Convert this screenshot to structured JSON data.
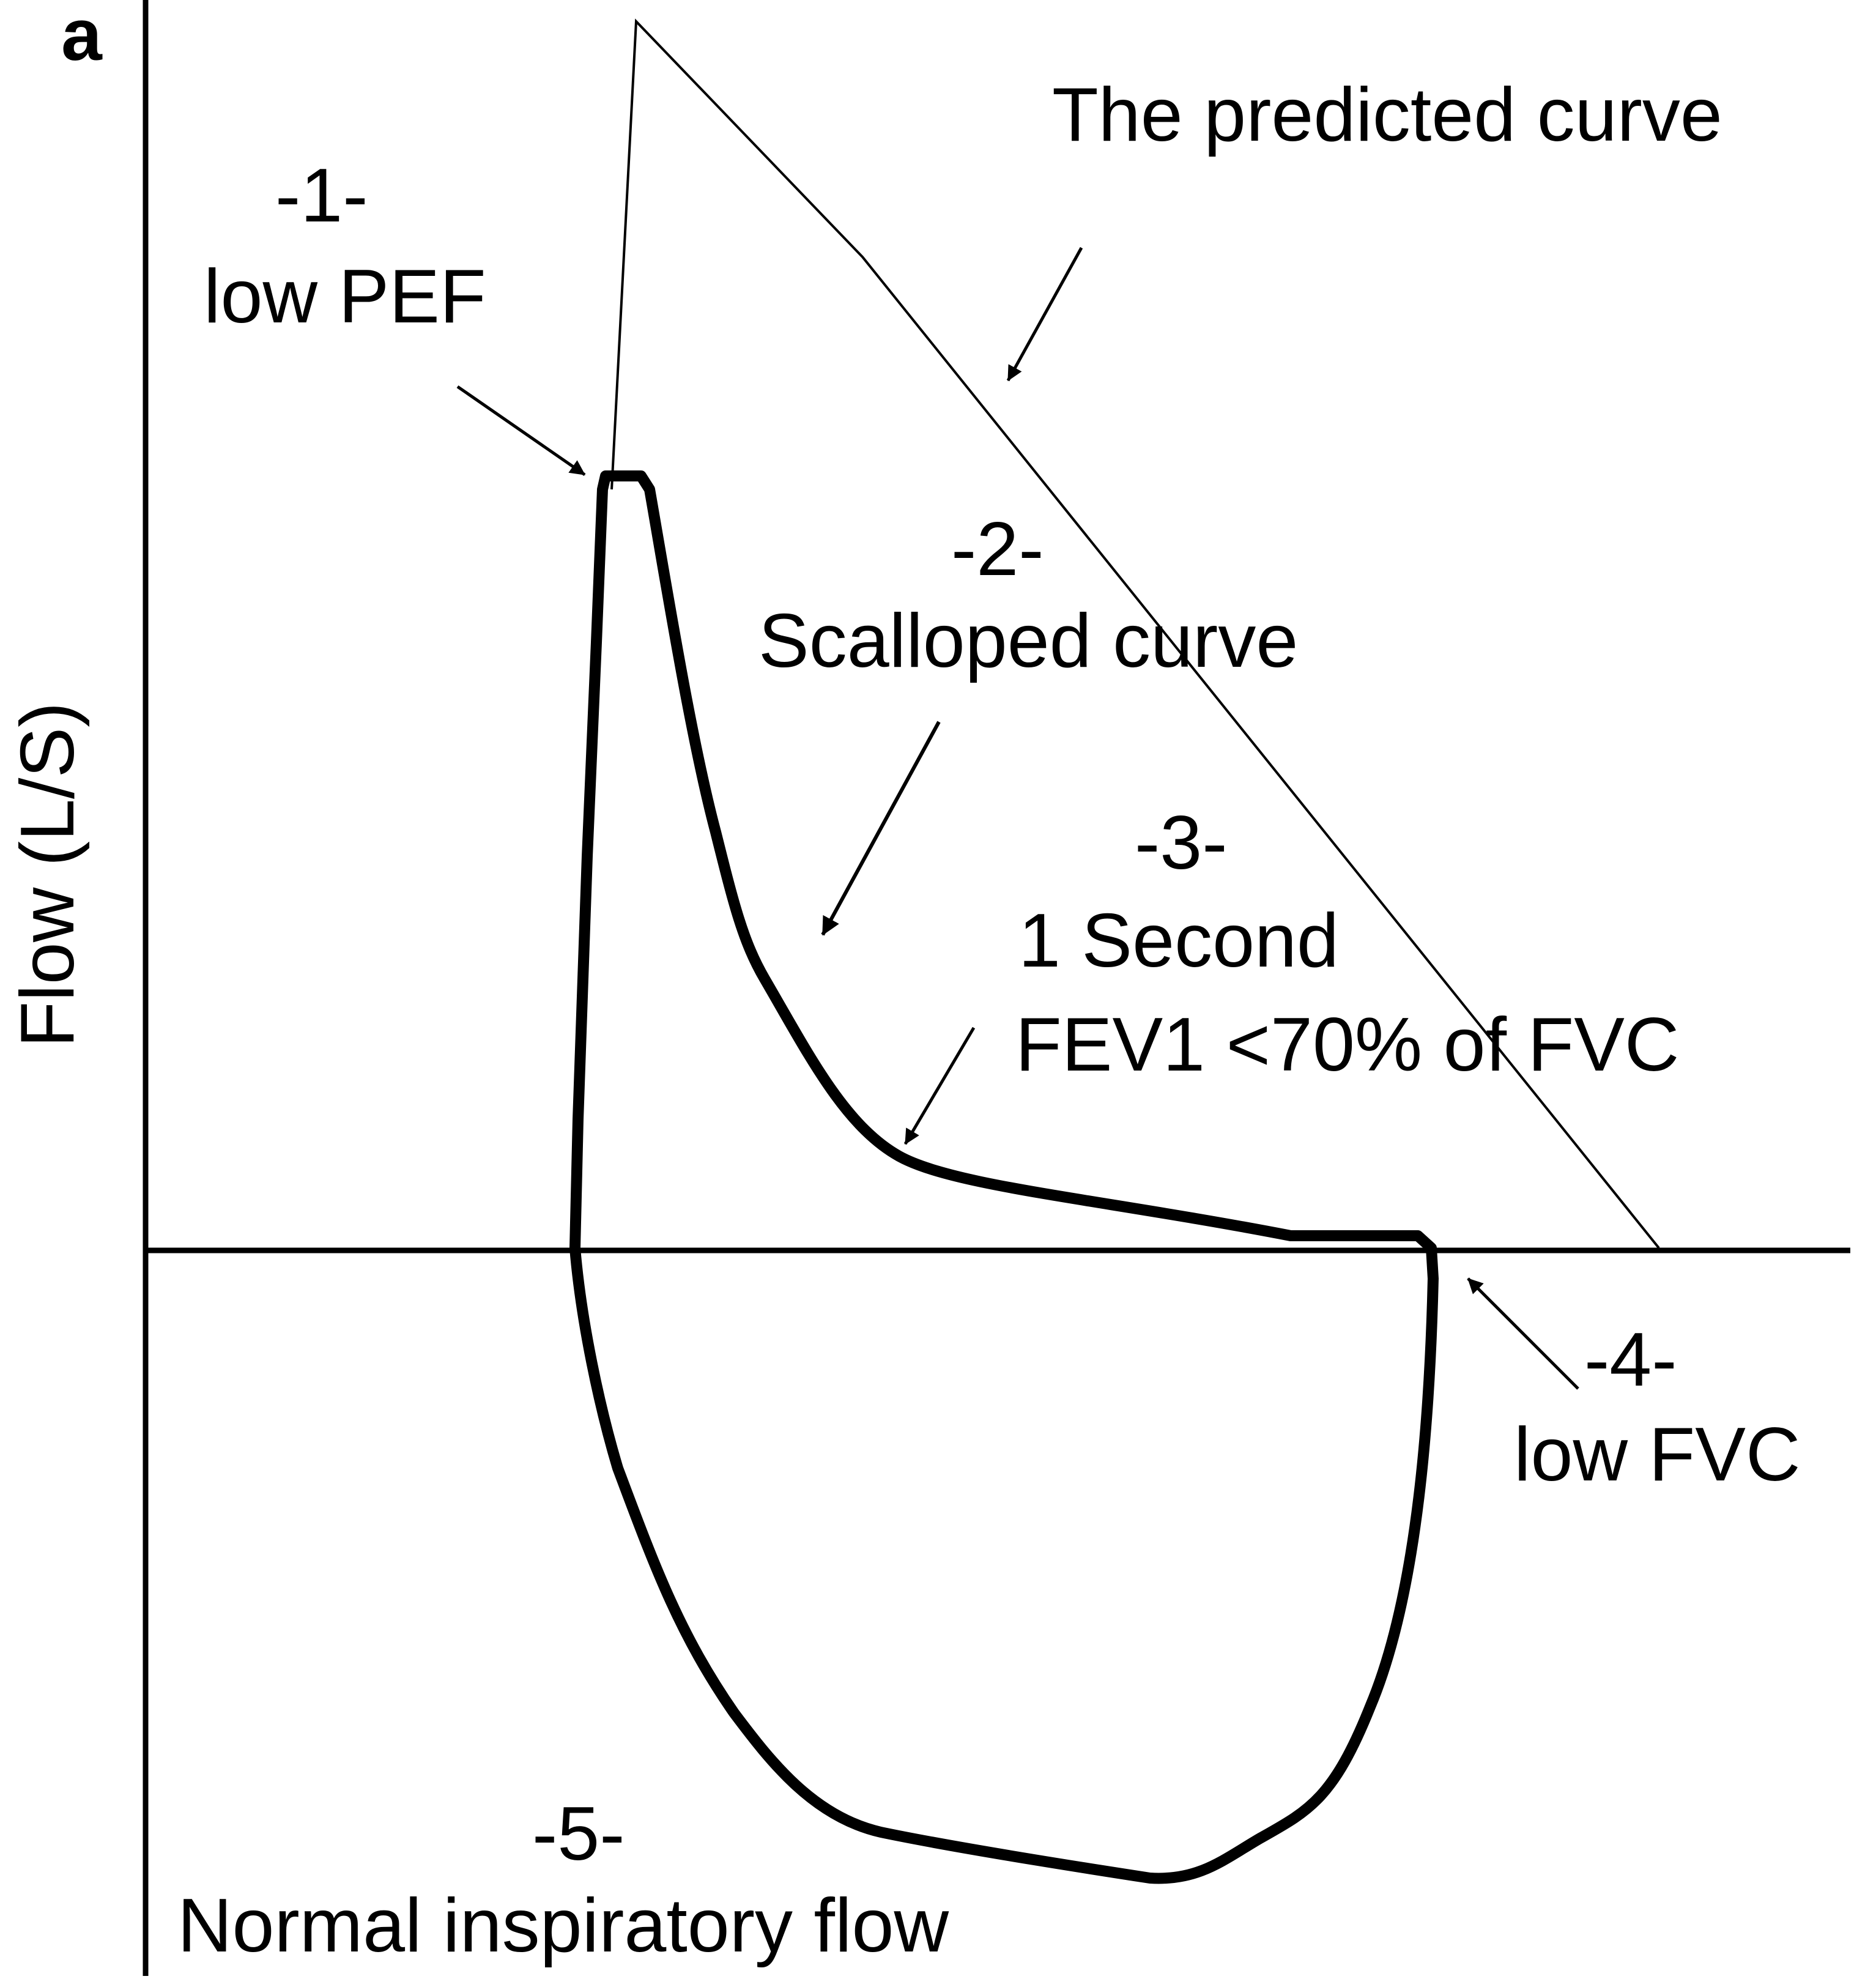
{
  "panel_letter": "a",
  "y_axis_label": "Flow (L/S)",
  "annotations": {
    "predicted": {
      "text": "The predicted curve"
    },
    "pef": {
      "number": "-1-",
      "text": "low PEF"
    },
    "scalloped": {
      "number": "-2-",
      "text": "Scalloped curve"
    },
    "fev1": {
      "number": "-3-",
      "line1": "1 Second",
      "line2": "FEV1 <70% of FVC"
    },
    "fvc": {
      "number": "-4-",
      "text": "low FVC"
    },
    "inspiratory": {
      "number": "-5-",
      "text": "Normal inspiratory flow"
    }
  },
  "colors": {
    "ink": "#000000",
    "background": "#ffffff"
  }
}
